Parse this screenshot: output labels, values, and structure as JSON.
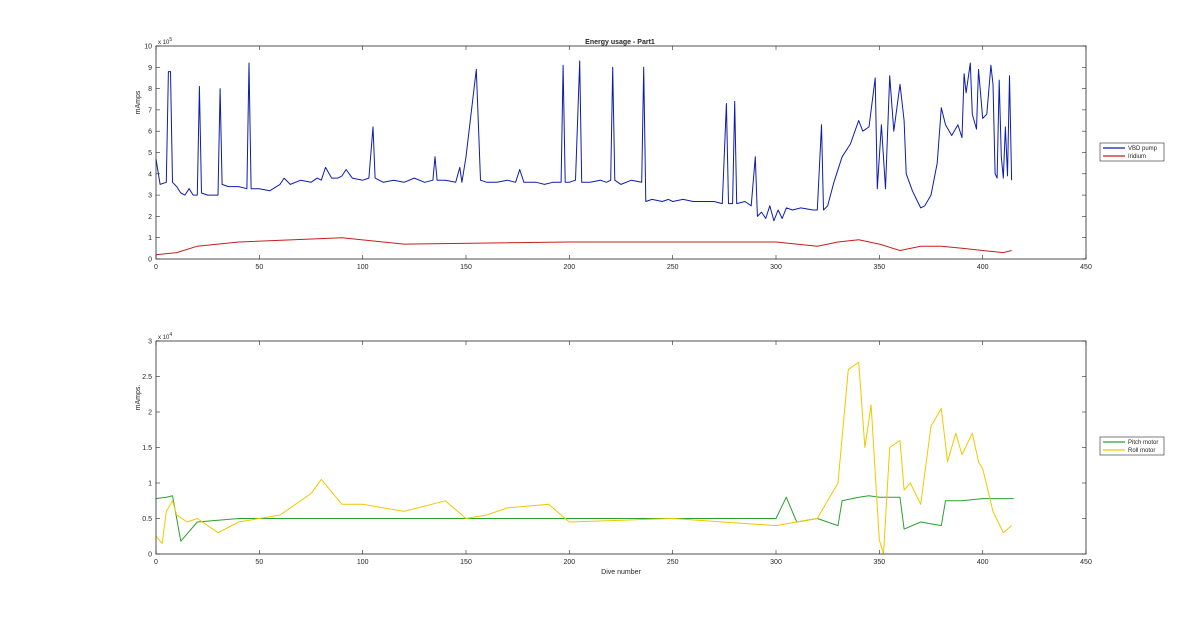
{
  "window": {
    "title": "Energy usage - Part1"
  },
  "chart_data": [
    {
      "type": "line",
      "title": "Energy usage - Part1",
      "xlabel": "",
      "ylabel": "mAmps",
      "y_exponent_label": "x 10^5",
      "xlim": [
        0,
        450
      ],
      "ylim": [
        0,
        10
      ],
      "xticks": [
        0,
        50,
        100,
        150,
        200,
        250,
        300,
        350,
        400,
        450
      ],
      "yticks": [
        0,
        1,
        2,
        3,
        4,
        5,
        6,
        7,
        8,
        9,
        10
      ],
      "legend": {
        "placement": "outside-right"
      },
      "grid": false,
      "series": [
        {
          "name": "VBD pump",
          "color": "#0e1dab",
          "points": [
            [
              0,
              4.7
            ],
            [
              2,
              3.5
            ],
            [
              5,
              3.6
            ],
            [
              6,
              8.8
            ],
            [
              7,
              8.8
            ],
            [
              8,
              3.6
            ],
            [
              10,
              3.4
            ],
            [
              12,
              3.1
            ],
            [
              14,
              3.0
            ],
            [
              16,
              3.3
            ],
            [
              18,
              3.0
            ],
            [
              20,
              3.0
            ],
            [
              21,
              8.1
            ],
            [
              22,
              3.1
            ],
            [
              25,
              3.0
            ],
            [
              28,
              3.0
            ],
            [
              30,
              3.0
            ],
            [
              31,
              8.0
            ],
            [
              32,
              3.5
            ],
            [
              35,
              3.4
            ],
            [
              40,
              3.4
            ],
            [
              44,
              3.3
            ],
            [
              45,
              9.2
            ],
            [
              46,
              3.3
            ],
            [
              50,
              3.3
            ],
            [
              55,
              3.2
            ],
            [
              60,
              3.5
            ],
            [
              62,
              3.8
            ],
            [
              65,
              3.5
            ],
            [
              70,
              3.7
            ],
            [
              75,
              3.6
            ],
            [
              78,
              3.8
            ],
            [
              80,
              3.7
            ],
            [
              82,
              4.3
            ],
            [
              85,
              3.8
            ],
            [
              88,
              3.8
            ],
            [
              90,
              3.9
            ],
            [
              92,
              4.2
            ],
            [
              95,
              3.8
            ],
            [
              100,
              3.7
            ],
            [
              103,
              3.8
            ],
            [
              105,
              6.2
            ],
            [
              106,
              3.8
            ],
            [
              110,
              3.6
            ],
            [
              115,
              3.7
            ],
            [
              120,
              3.6
            ],
            [
              125,
              3.8
            ],
            [
              130,
              3.6
            ],
            [
              134,
              3.7
            ],
            [
              135,
              4.8
            ],
            [
              136,
              3.7
            ],
            [
              140,
              3.7
            ],
            [
              145,
              3.6
            ],
            [
              147,
              4.3
            ],
            [
              148,
              3.6
            ],
            [
              150,
              4.8
            ],
            [
              155,
              8.9
            ],
            [
              157,
              3.7
            ],
            [
              160,
              3.6
            ],
            [
              165,
              3.6
            ],
            [
              170,
              3.7
            ],
            [
              174,
              3.6
            ],
            [
              176,
              4.2
            ],
            [
              178,
              3.6
            ],
            [
              180,
              3.6
            ],
            [
              184,
              3.6
            ],
            [
              188,
              3.5
            ],
            [
              192,
              3.6
            ],
            [
              196,
              3.6
            ],
            [
              197,
              9.1
            ],
            [
              198,
              3.6
            ],
            [
              200,
              3.6
            ],
            [
              203,
              3.7
            ],
            [
              205,
              9.3
            ],
            [
              206,
              3.6
            ],
            [
              210,
              3.6
            ],
            [
              215,
              3.7
            ],
            [
              218,
              3.6
            ],
            [
              220,
              3.7
            ],
            [
              221,
              9.0
            ],
            [
              222,
              3.7
            ],
            [
              225,
              3.5
            ],
            [
              230,
              3.7
            ],
            [
              235,
              3.6
            ],
            [
              236,
              9.0
            ],
            [
              237,
              2.7
            ],
            [
              240,
              2.8
            ],
            [
              245,
              2.7
            ],
            [
              248,
              2.8
            ],
            [
              250,
              2.7
            ],
            [
              255,
              2.8
            ],
            [
              260,
              2.7
            ],
            [
              265,
              2.7
            ],
            [
              270,
              2.7
            ],
            [
              274,
              2.6
            ],
            [
              276,
              7.3
            ],
            [
              277,
              2.6
            ],
            [
              279,
              2.6
            ],
            [
              280,
              7.4
            ],
            [
              281,
              2.6
            ],
            [
              285,
              2.7
            ],
            [
              288,
              2.5
            ],
            [
              290,
              4.8
            ],
            [
              291,
              2.0
            ],
            [
              293,
              2.2
            ],
            [
              295,
              1.9
            ],
            [
              297,
              2.5
            ],
            [
              299,
              1.8
            ],
            [
              301,
              2.3
            ],
            [
              303,
              1.9
            ],
            [
              305,
              2.4
            ],
            [
              308,
              2.3
            ],
            [
              312,
              2.4
            ],
            [
              318,
              2.3
            ],
            [
              320,
              2.3
            ],
            [
              322,
              6.3
            ],
            [
              323,
              2.3
            ],
            [
              325,
              2.5
            ],
            [
              328,
              3.6
            ],
            [
              332,
              4.8
            ],
            [
              336,
              5.4
            ],
            [
              340,
              6.5
            ],
            [
              342,
              6.0
            ],
            [
              345,
              6.2
            ],
            [
              348,
              8.5
            ],
            [
              349,
              3.3
            ],
            [
              351,
              6.3
            ],
            [
              353,
              3.3
            ],
            [
              355,
              8.6
            ],
            [
              357,
              6.0
            ],
            [
              360,
              8.2
            ],
            [
              362,
              6.5
            ],
            [
              363,
              4.0
            ],
            [
              366,
              3.2
            ],
            [
              368,
              2.8
            ],
            [
              370,
              2.4
            ],
            [
              372,
              2.5
            ],
            [
              375,
              3.0
            ],
            [
              378,
              4.5
            ],
            [
              380,
              7.1
            ],
            [
              382,
              6.3
            ],
            [
              385,
              5.8
            ],
            [
              388,
              6.3
            ],
            [
              390,
              5.7
            ],
            [
              391,
              8.7
            ],
            [
              392,
              7.8
            ],
            [
              394,
              9.2
            ],
            [
              395,
              6.8
            ],
            [
              397,
              6.1
            ],
            [
              398,
              8.9
            ],
            [
              400,
              6.6
            ],
            [
              402,
              6.8
            ],
            [
              404,
              9.1
            ],
            [
              405,
              8.2
            ],
            [
              406,
              4.0
            ],
            [
              407,
              3.8
            ],
            [
              408,
              8.4
            ],
            [
              409,
              4.8
            ],
            [
              410,
              3.8
            ],
            [
              411,
              6.2
            ],
            [
              412,
              3.9
            ],
            [
              413,
              8.6
            ],
            [
              414,
              3.7
            ]
          ]
        },
        {
          "name": "Iridium",
          "color": "#c81e1e",
          "points": [
            [
              0,
              0.2
            ],
            [
              10,
              0.3
            ],
            [
              20,
              0.6
            ],
            [
              40,
              0.8
            ],
            [
              90,
              1.0
            ],
            [
              120,
              0.7
            ],
            [
              200,
              0.8
            ],
            [
              300,
              0.8
            ],
            [
              320,
              0.6
            ],
            [
              330,
              0.8
            ],
            [
              340,
              0.9
            ],
            [
              350,
              0.7
            ],
            [
              360,
              0.4
            ],
            [
              370,
              0.6
            ],
            [
              380,
              0.6
            ],
            [
              390,
              0.5
            ],
            [
              400,
              0.4
            ],
            [
              410,
              0.3
            ],
            [
              414,
              0.4
            ]
          ]
        }
      ]
    },
    {
      "type": "line",
      "title": "",
      "xlabel": "Dive number",
      "ylabel": "mAmps.",
      "y_exponent_label": "x 10^4",
      "xlim": [
        0,
        450
      ],
      "ylim": [
        0,
        3
      ],
      "xticks": [
        0,
        50,
        100,
        150,
        200,
        250,
        300,
        350,
        400,
        450
      ],
      "yticks": [
        0,
        0.5,
        1,
        1.5,
        2,
        2.5,
        3
      ],
      "legend": {
        "placement": "outside-right"
      },
      "grid": false,
      "series": [
        {
          "name": "Pitch motor",
          "color": "#2ea02e",
          "points": [
            [
              0,
              0.78
            ],
            [
              5,
              0.8
            ],
            [
              8,
              0.82
            ],
            [
              10,
              0.5
            ],
            [
              12,
              0.18
            ],
            [
              20,
              0.45
            ],
            [
              40,
              0.5
            ],
            [
              100,
              0.5
            ],
            [
              200,
              0.5
            ],
            [
              300,
              0.5
            ],
            [
              305,
              0.8
            ],
            [
              310,
              0.45
            ],
            [
              320,
              0.5
            ],
            [
              330,
              0.4
            ],
            [
              332,
              0.75
            ],
            [
              340,
              0.8
            ],
            [
              345,
              0.82
            ],
            [
              350,
              0.8
            ],
            [
              360,
              0.8
            ],
            [
              362,
              0.35
            ],
            [
              370,
              0.45
            ],
            [
              380,
              0.4
            ],
            [
              382,
              0.75
            ],
            [
              390,
              0.75
            ],
            [
              400,
              0.78
            ],
            [
              410,
              0.78
            ],
            [
              415,
              0.78
            ]
          ]
        },
        {
          "name": "Roll motor",
          "color": "#f0c800",
          "points": [
            [
              0,
              0.25
            ],
            [
              3,
              0.15
            ],
            [
              5,
              0.6
            ],
            [
              8,
              0.75
            ],
            [
              10,
              0.55
            ],
            [
              15,
              0.45
            ],
            [
              20,
              0.5
            ],
            [
              30,
              0.3
            ],
            [
              40,
              0.45
            ],
            [
              60,
              0.55
            ],
            [
              75,
              0.85
            ],
            [
              80,
              1.05
            ],
            [
              90,
              0.7
            ],
            [
              100,
              0.7
            ],
            [
              120,
              0.6
            ],
            [
              140,
              0.75
            ],
            [
              150,
              0.5
            ],
            [
              160,
              0.55
            ],
            [
              170,
              0.65
            ],
            [
              190,
              0.7
            ],
            [
              200,
              0.45
            ],
            [
              250,
              0.5
            ],
            [
              300,
              0.4
            ],
            [
              320,
              0.5
            ],
            [
              330,
              1.0
            ],
            [
              335,
              2.6
            ],
            [
              340,
              2.7
            ],
            [
              343,
              1.5
            ],
            [
              346,
              2.1
            ],
            [
              350,
              0.2
            ],
            [
              352,
              0.0
            ],
            [
              355,
              1.5
            ],
            [
              360,
              1.6
            ],
            [
              362,
              0.9
            ],
            [
              365,
              1.0
            ],
            [
              370,
              0.7
            ],
            [
              375,
              1.8
            ],
            [
              380,
              2.05
            ],
            [
              383,
              1.3
            ],
            [
              387,
              1.7
            ],
            [
              390,
              1.4
            ],
            [
              395,
              1.7
            ],
            [
              398,
              1.3
            ],
            [
              400,
              1.2
            ],
            [
              405,
              0.6
            ],
            [
              410,
              0.3
            ],
            [
              414,
              0.4
            ]
          ]
        }
      ]
    }
  ]
}
